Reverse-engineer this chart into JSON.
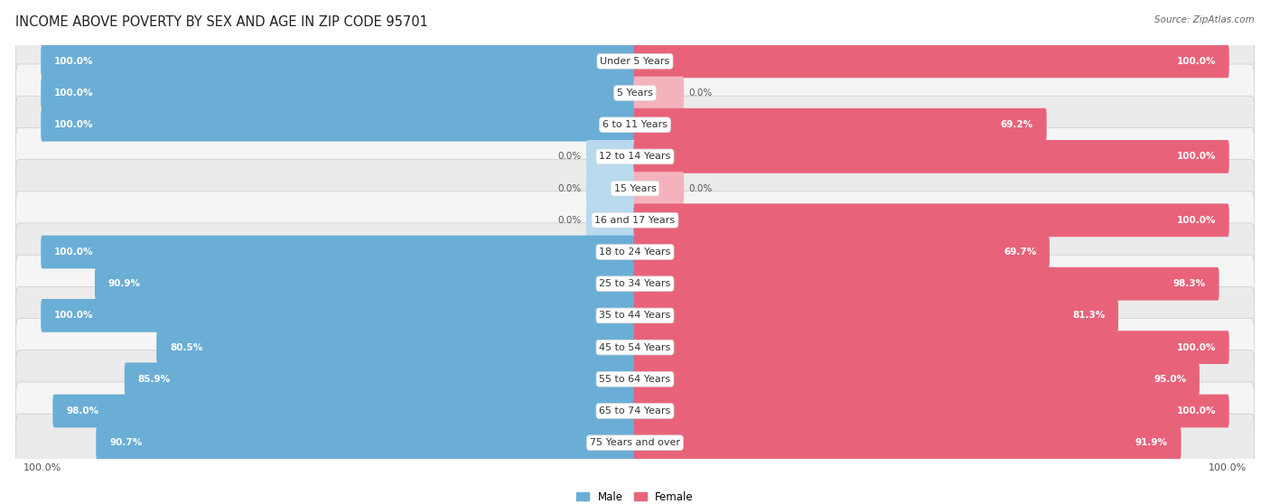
{
  "title": "INCOME ABOVE POVERTY BY SEX AND AGE IN ZIP CODE 95701",
  "source": "Source: ZipAtlas.com",
  "categories": [
    "Under 5 Years",
    "5 Years",
    "6 to 11 Years",
    "12 to 14 Years",
    "15 Years",
    "16 and 17 Years",
    "18 to 24 Years",
    "25 to 34 Years",
    "35 to 44 Years",
    "45 to 54 Years",
    "55 to 64 Years",
    "65 to 74 Years",
    "75 Years and over"
  ],
  "male": [
    100.0,
    100.0,
    100.0,
    0.0,
    0.0,
    0.0,
    100.0,
    90.9,
    100.0,
    80.5,
    85.9,
    98.0,
    90.7
  ],
  "female": [
    100.0,
    0.0,
    69.2,
    100.0,
    0.0,
    100.0,
    69.7,
    98.3,
    81.3,
    100.0,
    95.0,
    100.0,
    91.9
  ],
  "male_color": "#6aaed6",
  "female_color": "#e8637a",
  "male_color_light": "#b8d9ee",
  "female_color_light": "#f4b3bc",
  "row_bg_even": "#ebebeb",
  "row_bg_odd": "#f5f5f5",
  "title_fontsize": 10.5,
  "label_fontsize": 8,
  "value_fontsize": 7.5,
  "source_fontsize": 7.5
}
